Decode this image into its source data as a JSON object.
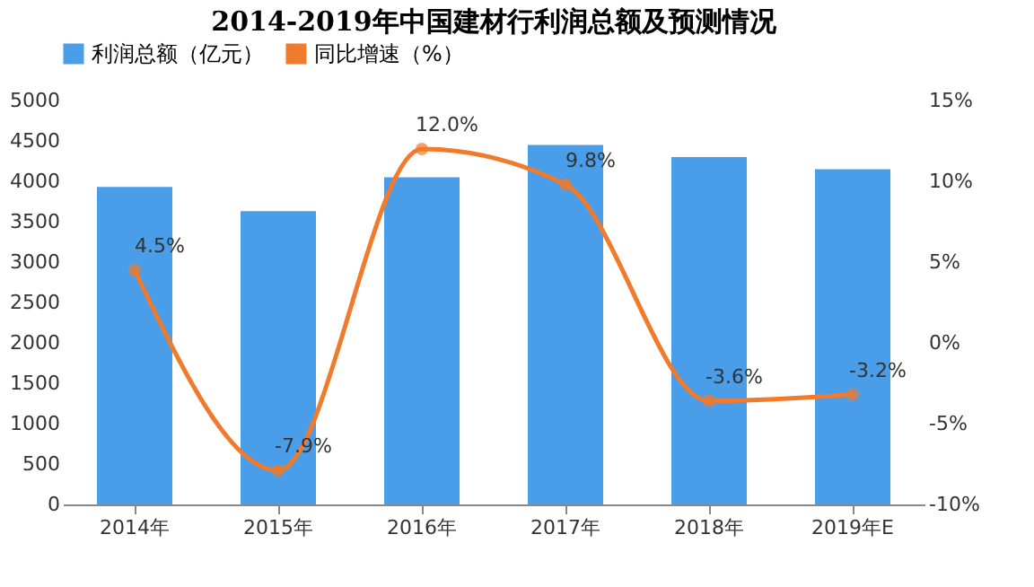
{
  "chart_data": {
    "type": "bar",
    "title": "2014-2019年中国建材行利润总额及预测情况",
    "categories": [
      "2014年",
      "2015年",
      "2016年",
      "2017年",
      "2018年",
      "2019年E"
    ],
    "series": [
      {
        "name": "利润总额（亿元）",
        "color": "#4a9de8",
        "values": [
          3930,
          3630,
          4050,
          4450,
          4300,
          4150
        ]
      },
      {
        "name": "同比增速（%）",
        "type": "line",
        "axis": "y2",
        "color": "#f07b2c",
        "values": [
          4.5,
          -7.9,
          12.0,
          9.8,
          -3.6,
          -3.2
        ],
        "value_labels": [
          "4.5%",
          "-7.9%",
          "12.0%",
          "9.8%",
          "-3.6%",
          "-3.2%"
        ]
      }
    ],
    "ylim": [
      0,
      5000
    ],
    "yticks": [
      0,
      500,
      1000,
      1500,
      2000,
      2500,
      3000,
      3500,
      4000,
      4500,
      5000
    ],
    "y2lim": [
      -10,
      15
    ],
    "y2ticks": [
      {
        "value": -10,
        "label": "-10%"
      },
      {
        "value": -5,
        "label": "-5%"
      },
      {
        "value": 0,
        "label": "0%"
      },
      {
        "value": 5,
        "label": "5%"
      },
      {
        "value": 10,
        "label": "10%"
      },
      {
        "value": 15,
        "label": "15%"
      }
    ],
    "legend": "top",
    "grid": false,
    "marker": "circle",
    "line_style": "solid"
  }
}
